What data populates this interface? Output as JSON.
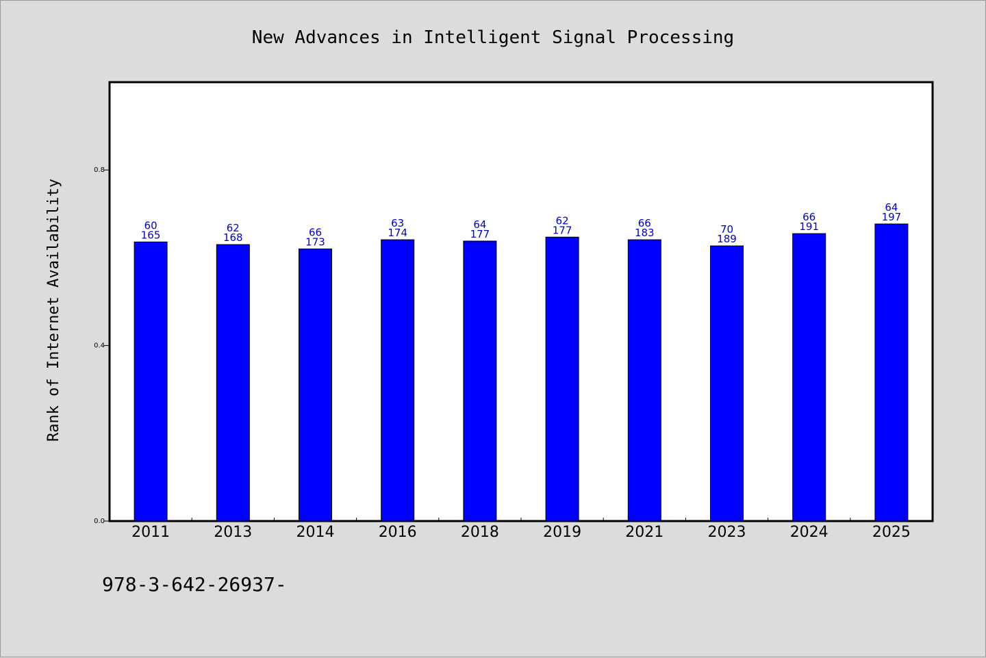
{
  "chart_data": {
    "type": "bar",
    "title": "New Advances in Intelligent Signal Processing",
    "ylabel": "Rank of Internet Availability",
    "xlabel": "",
    "ylim": [
      0,
      1.0
    ],
    "yticks": [
      0.0,
      0.4,
      0.8
    ],
    "ytick_labels": [
      "0.0",
      "0.4",
      "0.8"
    ],
    "grid": false,
    "bar_color": "#0000ff",
    "label_color": "#0000cc",
    "categories": [
      "2011",
      "2013",
      "2014",
      "2016",
      "2018",
      "2019",
      "2021",
      "2023",
      "2024",
      "2025"
    ],
    "values": [
      0.636,
      0.63,
      0.62,
      0.641,
      0.638,
      0.647,
      0.641,
      0.627,
      0.655,
      0.677
    ],
    "labels_top": [
      "60",
      "62",
      "66",
      "63",
      "64",
      "62",
      "66",
      "70",
      "66",
      "64"
    ],
    "labels_bottom": [
      "165",
      "168",
      "173",
      "174",
      "177",
      "177",
      "183",
      "189",
      "191",
      "197"
    ]
  },
  "footer": {
    "isbn": "978-3-642-26937-"
  }
}
